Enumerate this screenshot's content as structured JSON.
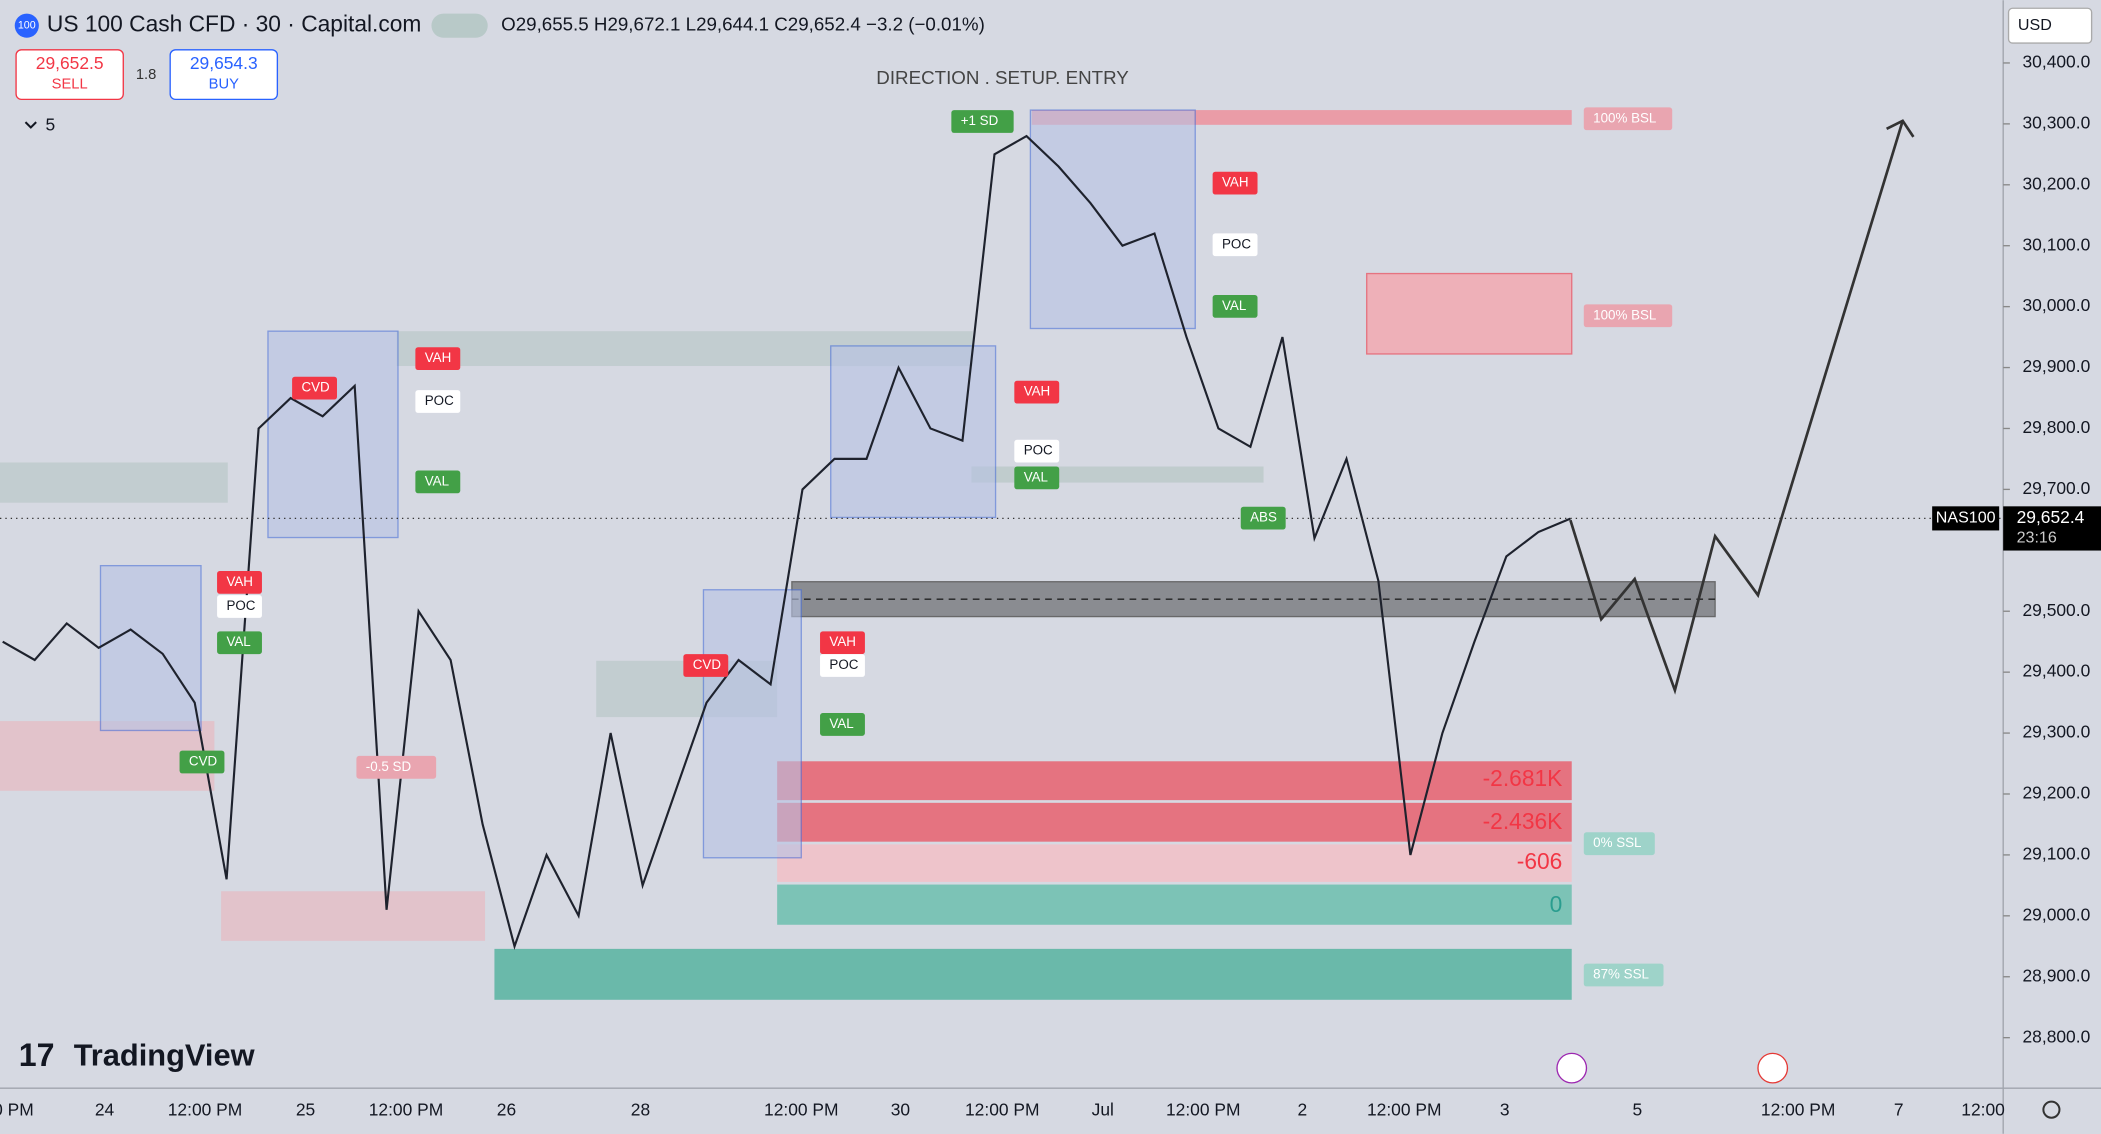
{
  "header": {
    "symbol_badge": "100",
    "title": "US 100 Cash CFD · 30 · Capital.com",
    "ohlc": "O29,655.5 H29,672.1 L29,644.1 C29,652.4 −3.2 (−0.01%)",
    "sell_price": "29,652.5",
    "sell_label": "SELL",
    "spread": "1.8",
    "buy_price": "29,654.3",
    "buy_label": "BUY",
    "indicator_count": "5",
    "currency": "USD"
  },
  "chart": {
    "type": "line",
    "title": "DIRECTION . SETUP. ENTRY",
    "color": "#1e222d",
    "ylim": [
      28717,
      30503
    ],
    "yticks": [
      {
        "value": 30400,
        "label": "30,400.0"
      },
      {
        "value": 30300,
        "label": "30,300.0"
      },
      {
        "value": 30200,
        "label": "30,200.0"
      },
      {
        "value": 30100,
        "label": "30,100.0"
      },
      {
        "value": 30000,
        "label": "30,000.0"
      },
      {
        "value": 29900,
        "label": "29,900.0"
      },
      {
        "value": 29800,
        "label": "29,800.0"
      },
      {
        "value": 29700,
        "label": "29,700.0"
      },
      {
        "value": 29500,
        "label": "29,500.0"
      },
      {
        "value": 29400,
        "label": "29,400.0"
      },
      {
        "value": 29300,
        "label": "29,300.0"
      },
      {
        "value": 29200,
        "label": "29,200.0"
      },
      {
        "value": 29100,
        "label": "29,100.0"
      },
      {
        "value": 29000,
        "label": "29,000.0"
      },
      {
        "value": 28900,
        "label": "28,900.0"
      },
      {
        "value": 28800,
        "label": "28,800.0"
      }
    ],
    "xticks": [
      "0 PM",
      "24",
      "12:00 PM",
      "25",
      "12:00 PM",
      "26",
      "28",
      "12:00 PM",
      "30",
      "12:00 PM",
      "Jul",
      "12:00 PM",
      "2",
      "12:00 PM",
      "3",
      "5",
      "12:00 PM",
      "7",
      "12:00"
    ],
    "values": [
      29450,
      29420,
      29480,
      29440,
      29470,
      29430,
      29350,
      29060,
      29800,
      29850,
      29820,
      29870,
      29010,
      29500,
      29420,
      29150,
      28950,
      29100,
      29000,
      29300,
      29050,
      29200,
      29350,
      29420,
      29380,
      29700,
      29750,
      29750,
      29900,
      29800,
      29780,
      30250,
      30280,
      30230,
      30170,
      30100,
      30120,
      29950,
      29800,
      29770,
      29950,
      29620,
      29750,
      29550,
      29100,
      29300,
      29450,
      29590,
      29630,
      29652
    ],
    "current_price": {
      "value": 29652.4,
      "label": "29,652.4"
    },
    "symbol": "NAS100",
    "countdown": "23:16",
    "annotations": [
      "-2.681K",
      "-2.436K",
      "-606",
      "0",
      "100% BSL",
      "100% BSL",
      "0% SSL",
      "87% SSL",
      "VAH",
      "POC",
      "VAL",
      "VAH",
      "POC",
      "VAL",
      "VAH",
      "POC",
      "VAL",
      "VAH",
      "POC",
      "VAL",
      "VAH",
      "POC",
      "VAL",
      "CVD",
      "CVD",
      "CVD",
      "ABS",
      "-0.5 SD",
      "+1 SD"
    ]
  },
  "watermark": "TradingView"
}
